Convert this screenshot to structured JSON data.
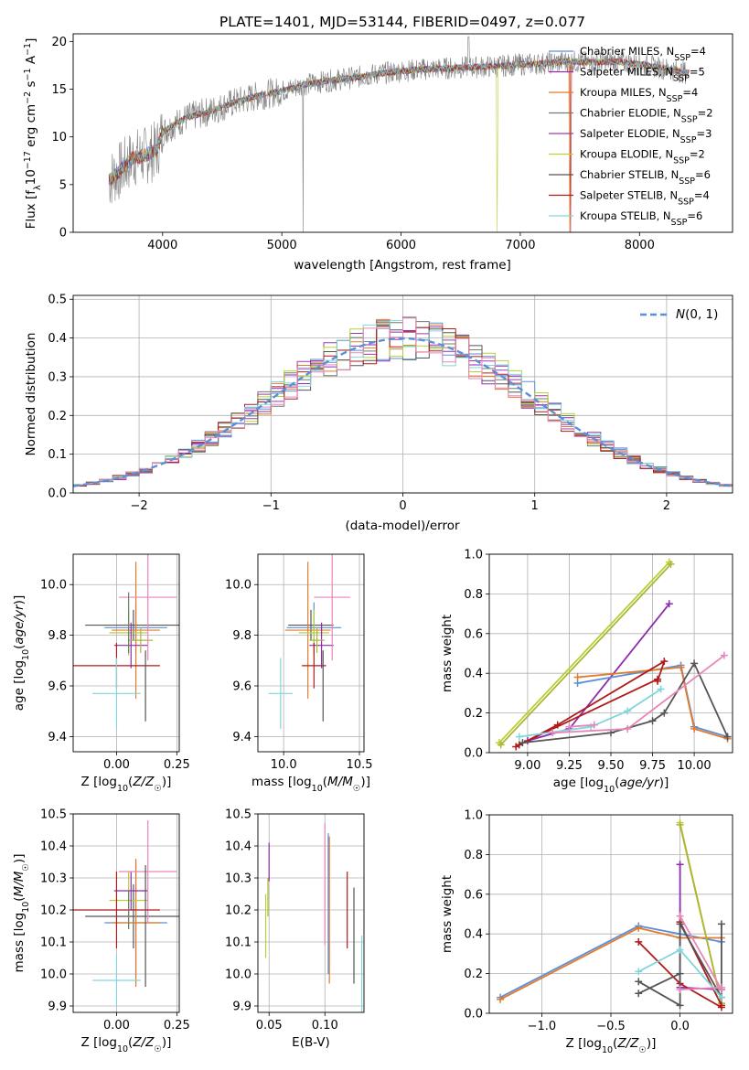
{
  "title": "PLATE=1401, MJD=53144, FIBERID=0497, z=0.077",
  "colors": {
    "chabrier_miles": "#5b8fd8",
    "salpeter_miles": "#8e2bb0",
    "kroupa_miles": "#e37b2c",
    "chabrier_elodie": "#6b7f6a",
    "salpeter_elodie": "#a03aa8",
    "kroupa_elodie": "#b5d233",
    "chabrier_stelib": "#555555",
    "salpeter_stelib": "#b01c1c",
    "kroupa_stelib": "#7fd6dc",
    "pink": "#e986b9",
    "olive": "#b0b437",
    "gray_data": "#808080",
    "grid": "#b0b0b0"
  },
  "chart_data": [
    {
      "id": "spectrum",
      "type": "line",
      "title": "PLATE=1401, MJD=53144, FIBERID=0497, z=0.077",
      "xlabel": "wavelength [Angstrom, rest frame]",
      "ylabel": "Flux [f_λ 10^-17 erg cm^-2 s^-1 A^-1]",
      "xlim": [
        3250,
        8780
      ],
      "ylim": [
        0,
        20.8
      ],
      "xticks": [
        4000,
        5000,
        6000,
        7000,
        8000
      ],
      "yticks": [
        0,
        5,
        10,
        15,
        20
      ],
      "grid": false,
      "legend_position": "top-right",
      "continuum": {
        "x": [
          3550,
          3650,
          3750,
          3850,
          3950,
          4000,
          4100,
          4200,
          4400,
          4600,
          4800,
          5000,
          5200,
          5400,
          5600,
          5800,
          6000,
          6200,
          6400,
          6600,
          6800,
          7000,
          7200,
          7400,
          7600,
          7800,
          8000,
          8200,
          8400
        ],
        "y": [
          5.5,
          6.5,
          7.8,
          8.0,
          8.6,
          10.5,
          11.3,
          12.0,
          12.7,
          13.6,
          14.3,
          14.8,
          15.5,
          15.9,
          16.2,
          16.6,
          16.9,
          17.1,
          17.2,
          17.3,
          17.4,
          17.6,
          17.7,
          17.9,
          17.8,
          17.9,
          17.6,
          17.2,
          16.7
        ]
      },
      "series": [
        {
          "name": "Chabrier MILES, N_SSP=4",
          "color": "#5b8fd8"
        },
        {
          "name": "Salpeter MILES, N_SSP=5",
          "color": "#8e2bb0"
        },
        {
          "name": "Kroupa MILES, N_SSP=4",
          "color": "#e37b2c"
        },
        {
          "name": "Chabrier ELODIE, N_SSP=2",
          "color": "#6b7f6a"
        },
        {
          "name": "Salpeter ELODIE, N_SSP=3",
          "color": "#a03aa8"
        },
        {
          "name": "Kroupa ELODIE, N_SSP=2",
          "color": "#b5d233"
        },
        {
          "name": "Chabrier STELIB, N_SSP=6",
          "color": "#555555"
        },
        {
          "name": "Salpeter STELIB, N_SSP=4",
          "color": "#b01c1c"
        },
        {
          "name": "Kroupa STELIB, N_SSP=6",
          "color": "#7fd6dc"
        }
      ]
    },
    {
      "id": "residuals",
      "type": "line",
      "xlabel": "(data-model)/error",
      "ylabel": "Normed distribution",
      "xlim": [
        -2.5,
        2.5
      ],
      "ylim": [
        0,
        0.51
      ],
      "xticks": [
        -2,
        -1,
        0,
        1,
        2
      ],
      "yticks": [
        0.0,
        0.1,
        0.2,
        0.3,
        0.4,
        0.5
      ],
      "grid": true,
      "legend_position": "top-right",
      "legend": "N(0,1)",
      "bin_width": 0.1,
      "series": [
        {
          "color": "#5b8fd8"
        },
        {
          "color": "#8e2bb0"
        },
        {
          "color": "#e37b2c"
        },
        {
          "color": "#6b7f6a"
        },
        {
          "color": "#a03aa8"
        },
        {
          "color": "#b5d233"
        },
        {
          "color": "#555555"
        },
        {
          "color": "#b01c1c"
        },
        {
          "color": "#7fd6dc"
        },
        {
          "color": "#e986b9"
        }
      ]
    },
    {
      "id": "z-age",
      "type": "scatter",
      "xlabel": "Z [log10(Z/Z☉)]",
      "ylabel": "age [log10(age/yr)]",
      "xlim": [
        -0.18,
        0.26
      ],
      "ylim": [
        9.34,
        10.12
      ],
      "xticks": [
        0.0,
        0.25
      ],
      "yticks": [
        9.4,
        9.6,
        9.8,
        10.0
      ],
      "grid": true,
      "points": [
        {
          "x": 0.07,
          "y": 9.84,
          "xerr": 0.2,
          "yerr": 0.06,
          "color": "#555555"
        },
        {
          "x": 0.08,
          "y": 9.83,
          "xerr": 0.13,
          "yerr": 0.1,
          "color": "#5b8fd8"
        },
        {
          "x": 0.08,
          "y": 9.82,
          "xerr": 0.1,
          "yerr": 0.27,
          "color": "#e37b2c"
        },
        {
          "x": 0.05,
          "y": 9.81,
          "xerr": 0.08,
          "yerr": 0.09,
          "color": "#b5d233"
        },
        {
          "x": 0.06,
          "y": 9.76,
          "xerr": 0.07,
          "yerr": 0.09,
          "color": "#8e2bb0"
        },
        {
          "x": 0.1,
          "y": 9.78,
          "xerr": 0.05,
          "yerr": 0.05,
          "color": "#b0b437"
        },
        {
          "x": 0.13,
          "y": 9.95,
          "xerr": 0.12,
          "yerr": 0.25,
          "color": "#e986b9"
        },
        {
          "x": 0.0,
          "y": 9.68,
          "xerr": 0.18,
          "yerr": 0.09,
          "color": "#b01c1c"
        },
        {
          "x": 0.0,
          "y": 9.57,
          "xerr": 0.1,
          "yerr": 0.14,
          "color": "#7fd6dc"
        },
        {
          "x": 0.12,
          "y": 9.6,
          "xerr": 0.0,
          "yerr": 0.14,
          "color": "#555555"
        },
        {
          "x": 0.05,
          "y": 9.85,
          "xerr": 0.0,
          "yerr": 0.12,
          "color": "#6b7f6a"
        }
      ]
    },
    {
      "id": "mass-age",
      "type": "scatter",
      "xlabel": "mass [log10(M/M☉)]",
      "ylabel": "",
      "xlim": [
        9.83,
        10.53
      ],
      "ylim": [
        9.34,
        10.12
      ],
      "xticks": [
        10.0,
        10.5
      ],
      "yticks": [
        9.4,
        9.6,
        9.8,
        10.0
      ],
      "grid": true,
      "points": [
        {
          "x": 10.18,
          "y": 9.84,
          "xerr": 0.15,
          "yerr": 0.06,
          "color": "#555555"
        },
        {
          "x": 10.2,
          "y": 9.83,
          "xerr": 0.18,
          "yerr": 0.1,
          "color": "#5b8fd8"
        },
        {
          "x": 10.16,
          "y": 9.82,
          "xerr": 0.15,
          "yerr": 0.27,
          "color": "#e37b2c"
        },
        {
          "x": 10.2,
          "y": 9.81,
          "xerr": 0.1,
          "yerr": 0.09,
          "color": "#b5d233"
        },
        {
          "x": 10.25,
          "y": 9.76,
          "xerr": 0.08,
          "yerr": 0.09,
          "color": "#8e2bb0"
        },
        {
          "x": 10.22,
          "y": 9.78,
          "xerr": 0.05,
          "yerr": 0.05,
          "color": "#b0b437"
        },
        {
          "x": 10.32,
          "y": 9.95,
          "xerr": 0.12,
          "yerr": 0.25,
          "color": "#e986b9"
        },
        {
          "x": 10.2,
          "y": 9.68,
          "xerr": 0.08,
          "yerr": 0.09,
          "color": "#b01c1c"
        },
        {
          "x": 9.98,
          "y": 9.57,
          "xerr": 0.08,
          "yerr": 0.14,
          "color": "#7fd6dc"
        },
        {
          "x": 10.26,
          "y": 9.6,
          "xerr": 0.0,
          "yerr": 0.14,
          "color": "#555555"
        }
      ]
    },
    {
      "id": "age-massweight",
      "type": "line",
      "xlabel": "age [log10(age/yr)]",
      "ylabel": "mass weight",
      "xlim": [
        8.77,
        10.23
      ],
      "ylim": [
        0,
        1.0
      ],
      "xticks": [
        9.0,
        9.25,
        9.5,
        9.75,
        10.0
      ],
      "yticks": [
        0.0,
        0.2,
        0.4,
        0.6,
        0.8,
        1.0
      ],
      "grid": true,
      "series": [
        {
          "color": "#b5d233",
          "x": [
            8.83,
            9.85
          ],
          "y": [
            0.05,
            0.96
          ]
        },
        {
          "color": "#b0b437",
          "x": [
            8.84,
            9.86
          ],
          "y": [
            0.04,
            0.95
          ]
        },
        {
          "color": "#8e2bb0",
          "x": [
            9.0,
            9.25,
            9.85
          ],
          "y": [
            0.06,
            0.12,
            0.75
          ]
        },
        {
          "color": "#5b8fd8",
          "x": [
            9.3,
            9.92,
            10.0,
            10.2
          ],
          "y": [
            0.35,
            0.44,
            0.13,
            0.08
          ]
        },
        {
          "color": "#e37b2c",
          "x": [
            9.3,
            9.92,
            10.0,
            10.2
          ],
          "y": [
            0.38,
            0.43,
            0.12,
            0.07
          ]
        },
        {
          "color": "#b01c1c",
          "x": [
            8.93,
            9.18,
            9.82,
            9.78
          ],
          "y": [
            0.03,
            0.14,
            0.46,
            0.36
          ]
        },
        {
          "color": "#b01c1c",
          "x": [
            8.95,
            9.78
          ],
          "y": [
            0.04,
            0.37
          ]
        },
        {
          "color": "#555555",
          "x": [
            8.97,
            9.5,
            9.75,
            9.82,
            10.0,
            10.2
          ],
          "y": [
            0.05,
            0.1,
            0.16,
            0.2,
            0.45,
            0.08
          ]
        },
        {
          "color": "#7fd6dc",
          "x": [
            8.95,
            9.38,
            9.6,
            9.8
          ],
          "y": [
            0.08,
            0.13,
            0.21,
            0.32
          ]
        },
        {
          "color": "#e986b9",
          "x": [
            9.15,
            9.6,
            10.18
          ],
          "y": [
            0.1,
            0.12,
            0.49
          ]
        },
        {
          "color": "#e986b9",
          "x": [
            9.25,
            9.4
          ],
          "y": [
            0.13,
            0.14
          ]
        }
      ]
    },
    {
      "id": "z-mass",
      "type": "scatter",
      "xlabel": "Z [log10(Z/Z☉)]",
      "ylabel": "mass [log10(M/M☉)]",
      "xlim": [
        -0.18,
        0.26
      ],
      "ylim": [
        9.88,
        10.5
      ],
      "xticks": [
        0.0,
        0.25
      ],
      "yticks": [
        9.9,
        10.0,
        10.1,
        10.2,
        10.3,
        10.4,
        10.5
      ],
      "grid": true,
      "points": [
        {
          "x": 0.07,
          "y": 10.18,
          "xerr": 0.2,
          "yerr": 0.1,
          "color": "#555555"
        },
        {
          "x": 0.08,
          "y": 10.16,
          "xerr": 0.13,
          "yerr": 0.19,
          "color": "#5b8fd8"
        },
        {
          "x": 0.08,
          "y": 10.16,
          "xerr": 0.1,
          "yerr": 0.2,
          "color": "#e37b2c"
        },
        {
          "x": 0.05,
          "y": 10.23,
          "xerr": 0.08,
          "yerr": 0.09,
          "color": "#b5d233"
        },
        {
          "x": 0.06,
          "y": 10.26,
          "xerr": 0.07,
          "yerr": 0.06,
          "color": "#8e2bb0"
        },
        {
          "x": 0.13,
          "y": 10.32,
          "xerr": 0.12,
          "yerr": 0.16,
          "color": "#e986b9"
        },
        {
          "x": 0.0,
          "y": 10.2,
          "xerr": 0.18,
          "yerr": 0.12,
          "color": "#b01c1c"
        },
        {
          "x": 0.0,
          "y": 9.98,
          "xerr": 0.1,
          "yerr": 0.08,
          "color": "#7fd6dc"
        },
        {
          "x": 0.12,
          "y": 10.15,
          "xerr": 0.0,
          "yerr": 0.19,
          "color": "#555555"
        },
        {
          "x": 0.05,
          "y": 10.2,
          "xerr": 0.0,
          "yerr": 0.06,
          "color": "#6b7f6a"
        }
      ]
    },
    {
      "id": "ebv-mass",
      "type": "scatter",
      "xlabel": "E(B-V)",
      "ylabel": "",
      "xlim": [
        0.04,
        0.135
      ],
      "ylim": [
        9.88,
        10.5
      ],
      "xticks": [
        0.05,
        0.1
      ],
      "yticks": [
        9.9,
        10.0,
        10.1,
        10.2,
        10.3,
        10.4,
        10.5
      ],
      "grid": true,
      "points": [
        {
          "x": 0.047,
          "y": 10.15,
          "yerr": 0.1,
          "color": "#b5d233"
        },
        {
          "x": 0.049,
          "y": 10.24,
          "yerr": 0.06,
          "color": "#b0b437"
        },
        {
          "x": 0.05,
          "y": 10.35,
          "yerr": 0.06,
          "color": "#8e2bb0"
        },
        {
          "x": 0.1,
          "y": 10.28,
          "yerr": 0.19,
          "color": "#e986b9"
        },
        {
          "x": 0.104,
          "y": 10.2,
          "yerr": 0.23,
          "color": "#e37b2c"
        },
        {
          "x": 0.103,
          "y": 10.22,
          "yerr": 0.22,
          "color": "#5b8fd8"
        },
        {
          "x": 0.12,
          "y": 10.2,
          "yerr": 0.12,
          "color": "#b01c1c"
        },
        {
          "x": 0.126,
          "y": 10.12,
          "yerr": 0.15,
          "color": "#555555"
        },
        {
          "x": 0.133,
          "y": 10.0,
          "yerr": 0.12,
          "color": "#7fd6dc"
        }
      ]
    },
    {
      "id": "z-massweight",
      "type": "line",
      "xlabel": "Z [log10(Z/Z☉)]",
      "ylabel": "mass weight",
      "xlim": [
        -1.38,
        0.38
      ],
      "ylim": [
        0,
        1.0
      ],
      "xticks": [
        -1.0,
        -0.5,
        0.0
      ],
      "yticks": [
        0.0,
        0.2,
        0.4,
        0.6,
        0.8,
        1.0
      ],
      "grid": true,
      "series": [
        {
          "color": "#5b8fd8",
          "x": [
            -1.3,
            -0.3,
            0.0,
            0.3
          ],
          "y": [
            0.08,
            0.44,
            0.4,
            0.36
          ]
        },
        {
          "color": "#e37b2c",
          "x": [
            -1.3,
            -0.3,
            0.0,
            0.3
          ],
          "y": [
            0.07,
            0.43,
            0.38,
            0.38
          ]
        },
        {
          "color": "#b5d233",
          "x": [
            0.0,
            0.3
          ],
          "y": [
            0.96,
            0.05
          ]
        },
        {
          "color": "#b0b437",
          "x": [
            0.0,
            0.3
          ],
          "y": [
            0.95,
            0.05
          ]
        },
        {
          "color": "#8e2bb0",
          "x": [
            0.0,
            0.0,
            0.3
          ],
          "y": [
            0.75,
            0.13,
            0.12
          ]
        },
        {
          "color": "#b01c1c",
          "x": [
            -0.3,
            0.0,
            0.3
          ],
          "y": [
            0.36,
            0.15,
            0.03
          ]
        },
        {
          "color": "#b01c1c",
          "x": [
            0.0,
            0.3
          ],
          "y": [
            0.46,
            0.04
          ]
        },
        {
          "color": "#555555",
          "x": [
            -0.3,
            0.0,
            0.0,
            0.3,
            0.3
          ],
          "y": [
            0.16,
            0.04,
            0.45,
            0.08,
            0.45
          ]
        },
        {
          "color": "#555555",
          "x": [
            -0.3,
            0.0
          ],
          "y": [
            0.1,
            0.2
          ]
        },
        {
          "color": "#7fd6dc",
          "x": [
            -0.3,
            0.0,
            0.3
          ],
          "y": [
            0.21,
            0.32,
            0.08
          ]
        },
        {
          "color": "#e986b9",
          "x": [
            0.0,
            0.3
          ],
          "y": [
            0.49,
            0.12
          ]
        },
        {
          "color": "#e986b9",
          "x": [
            0.0,
            0.3
          ],
          "y": [
            0.12,
            0.13
          ]
        }
      ]
    }
  ]
}
